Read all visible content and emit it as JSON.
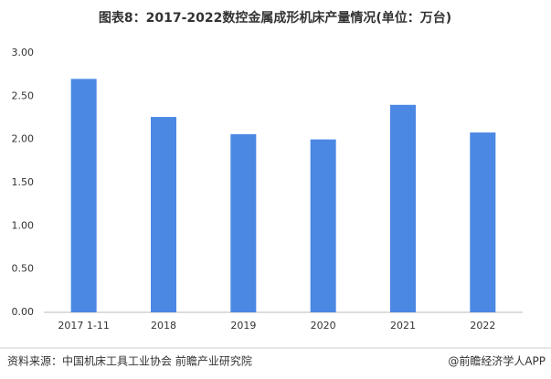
{
  "chart_data": {
    "type": "bar",
    "title": "图表8：2017-2022数控金属成形机床产量情况(单位：万台)",
    "categories": [
      "2017 1-11",
      "2018",
      "2019",
      "2020",
      "2021",
      "2022"
    ],
    "values": [
      2.7,
      2.26,
      2.06,
      2.0,
      2.4,
      2.08
    ],
    "color": "#4a88e4",
    "ylim": [
      0,
      3
    ],
    "yticks": [
      {
        "value": 0,
        "label": "0.00"
      },
      {
        "value": 0.5,
        "label": "0.50"
      },
      {
        "value": 1,
        "label": "1.00"
      },
      {
        "value": 1.5,
        "label": "1.50"
      },
      {
        "value": 2,
        "label": "2.00"
      },
      {
        "value": 2.5,
        "label": "2.50"
      },
      {
        "value": 3,
        "label": "3.00"
      }
    ],
    "grid": false,
    "source": "资料来源：中国机床工具工业协会 前瞻产业研究院",
    "credit": "@前瞻经济学人APP"
  }
}
